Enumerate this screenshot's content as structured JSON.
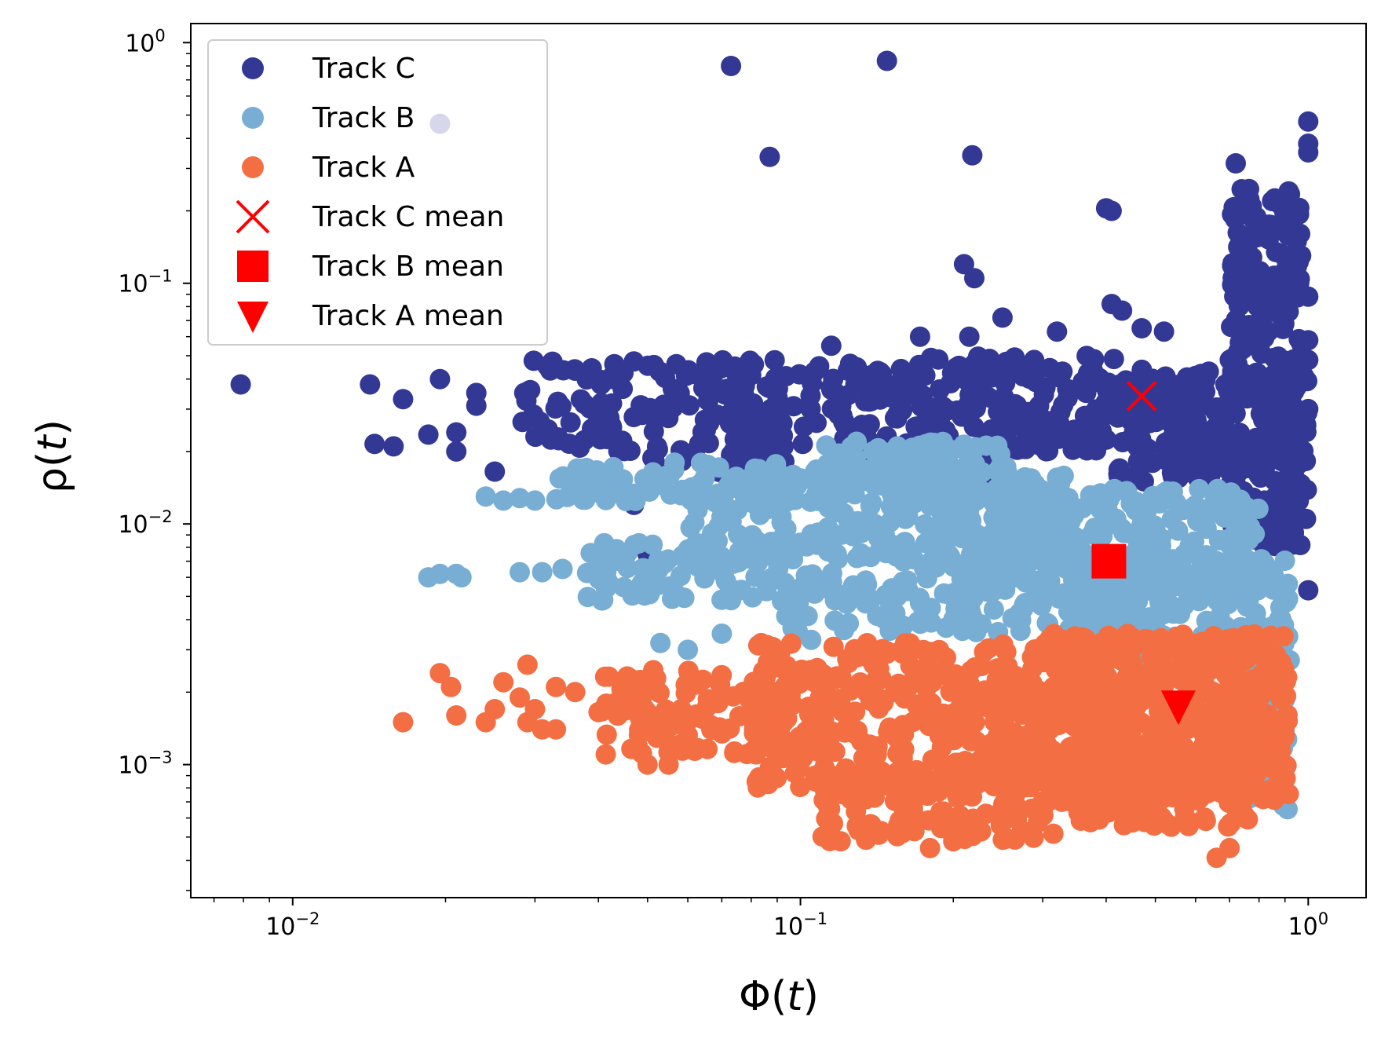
{
  "chart_data": {
    "type": "scatter",
    "xlabel_main": "Φ(",
    "xlabel_var": "t",
    "xlabel_close": ")",
    "ylabel_main": "ρ(",
    "ylabel_var": "t",
    "ylabel_close": ")",
    "xscale": "log",
    "yscale": "log",
    "xlim": [
      0.0063,
      1.3
    ],
    "ylim": [
      0.00028,
      1.2
    ],
    "grid": false,
    "legend_position": "upper-left",
    "x_ticks": [
      {
        "value": 0.01,
        "base": "10",
        "exp": "−2"
      },
      {
        "value": 0.1,
        "base": "10",
        "exp": "−1"
      },
      {
        "value": 1,
        "base": "10",
        "exp": "0"
      }
    ],
    "y_ticks": [
      {
        "value": 0.001,
        "base": "10",
        "exp": "−3"
      },
      {
        "value": 0.01,
        "base": "10",
        "exp": "−2"
      },
      {
        "value": 0.1,
        "base": "10",
        "exp": "−1"
      },
      {
        "value": 1,
        "base": "10",
        "exp": "0"
      }
    ],
    "series": [
      {
        "name": "Track C",
        "color": "#333895",
        "marker": "circle",
        "points": [
          [
            0.0079,
            0.038
          ],
          [
            0.0142,
            0.038
          ],
          [
            0.0145,
            0.0215
          ],
          [
            0.0158,
            0.021
          ],
          [
            0.0165,
            0.033
          ],
          [
            0.0195,
            0.04
          ],
          [
            0.0185,
            0.0235
          ],
          [
            0.021,
            0.024
          ],
          [
            0.023,
            0.035
          ],
          [
            0.023,
            0.031
          ],
          [
            0.025,
            0.0165
          ],
          [
            0.021,
            0.02
          ],
          [
            0.0195,
            0.46
          ],
          [
            0.073,
            0.8
          ],
          [
            0.148,
            0.84
          ],
          [
            0.087,
            0.335
          ],
          [
            0.218,
            0.34
          ],
          [
            0.21,
            0.12
          ],
          [
            0.22,
            0.105
          ],
          [
            0.25,
            0.072
          ],
          [
            0.115,
            0.055
          ],
          [
            0.172,
            0.06
          ],
          [
            0.215,
            0.06
          ],
          [
            0.32,
            0.063
          ],
          [
            0.4,
            0.205
          ],
          [
            0.41,
            0.2
          ],
          [
            0.41,
            0.082
          ],
          [
            0.43,
            0.077
          ],
          [
            0.47,
            0.065
          ],
          [
            0.52,
            0.063
          ],
          [
            0.72,
            0.315
          ],
          [
            1.0,
            0.47
          ],
          [
            1.0,
            0.38
          ],
          [
            1.0,
            0.35
          ],
          [
            1.0,
            0.088
          ],
          [
            1.0,
            0.058
          ],
          [
            1.0,
            0.048
          ],
          [
            1.0,
            0.03
          ],
          [
            0.99,
            0.0105
          ],
          [
            1.0,
            0.0053
          ],
          [
            0.05,
            0.0075
          ],
          [
            0.047,
            0.012
          ]
        ],
        "clusters": [
          {
            "x_range": [
              0.028,
              0.12
            ],
            "y_range": [
              0.02,
              0.048
            ],
            "count": 170
          },
          {
            "x_range": [
              0.12,
              0.42
            ],
            "y_range": [
              0.02,
              0.05
            ],
            "count": 210
          },
          {
            "x_range": [
              0.42,
              0.72
            ],
            "y_range": [
              0.015,
              0.045
            ],
            "count": 140
          },
          {
            "x_range": [
              0.7,
              0.97
            ],
            "y_range": [
              0.008,
              0.25
            ],
            "count": 300
          },
          {
            "x_range": [
              0.85,
              1.0
            ],
            "y_range": [
              0.012,
              0.05
            ],
            "count": 60
          },
          {
            "x_range": [
              0.05,
              0.32
            ],
            "y_range": [
              0.015,
              0.022
            ],
            "count": 60
          }
        ]
      },
      {
        "name": "Track B",
        "color": "#78aed3",
        "marker": "circle",
        "points": [
          [
            0.0185,
            0.006
          ],
          [
            0.0195,
            0.0062
          ],
          [
            0.021,
            0.0062
          ],
          [
            0.0215,
            0.006
          ],
          [
            0.024,
            0.013
          ],
          [
            0.026,
            0.0125
          ],
          [
            0.028,
            0.0128
          ],
          [
            0.03,
            0.0125
          ],
          [
            0.028,
            0.0063
          ],
          [
            0.031,
            0.0063
          ],
          [
            0.034,
            0.0065
          ],
          [
            0.053,
            0.0032
          ],
          [
            0.06,
            0.003
          ],
          [
            0.07,
            0.0035
          ],
          [
            0.088,
            0.003
          ],
          [
            0.105,
            0.0033
          ],
          [
            0.15,
            0.0036
          ],
          [
            0.18,
            0.0029
          ],
          [
            0.88,
            0.0055
          ]
        ],
        "clusters": [
          {
            "x_range": [
              0.033,
              0.11
            ],
            "y_range": [
              0.012,
              0.018
            ],
            "count": 90
          },
          {
            "x_range": [
              0.038,
              0.12
            ],
            "y_range": [
              0.0048,
              0.0085
            ],
            "count": 110
          },
          {
            "x_range": [
              0.06,
              0.35
            ],
            "y_range": [
              0.0065,
              0.016
            ],
            "count": 260
          },
          {
            "x_range": [
              0.11,
              0.26
            ],
            "y_range": [
              0.014,
              0.022
            ],
            "count": 110
          },
          {
            "x_range": [
              0.2,
              0.8
            ],
            "y_range": [
              0.005,
              0.014
            ],
            "count": 250
          },
          {
            "x_range": [
              0.09,
              0.45
            ],
            "y_range": [
              0.0035,
              0.006
            ],
            "count": 110
          },
          {
            "x_range": [
              0.35,
              0.92
            ],
            "y_range": [
              0.0028,
              0.0075
            ],
            "count": 200
          },
          {
            "x_range": [
              0.75,
              0.92
            ],
            "y_range": [
              0.0006,
              0.003
            ],
            "count": 40
          }
        ]
      },
      {
        "name": "Track A",
        "color": "#f36f43",
        "marker": "circle",
        "points": [
          [
            0.0165,
            0.0015
          ],
          [
            0.0195,
            0.0024
          ],
          [
            0.0205,
            0.0021
          ],
          [
            0.021,
            0.0016
          ],
          [
            0.024,
            0.0015
          ],
          [
            0.025,
            0.0017
          ],
          [
            0.026,
            0.0022
          ],
          [
            0.028,
            0.0019
          ],
          [
            0.029,
            0.0026
          ],
          [
            0.029,
            0.0015
          ],
          [
            0.03,
            0.0017
          ],
          [
            0.031,
            0.0014
          ],
          [
            0.033,
            0.0021
          ],
          [
            0.033,
            0.0014
          ],
          [
            0.036,
            0.002
          ],
          [
            0.05,
            0.001
          ],
          [
            0.055,
            0.001
          ],
          [
            0.12,
            0.00048
          ],
          [
            0.18,
            0.00045
          ],
          [
            0.2,
            0.00048
          ],
          [
            0.66,
            0.00041
          ],
          [
            0.7,
            0.00045
          ],
          [
            0.16,
            0.00065
          ]
        ],
        "clusters": [
          {
            "x_range": [
              0.04,
              0.11
            ],
            "y_range": [
              0.0011,
              0.0025
            ],
            "count": 110
          },
          {
            "x_range": [
              0.08,
              0.3
            ],
            "y_range": [
              0.0008,
              0.0032
            ],
            "count": 330
          },
          {
            "x_range": [
              0.11,
              0.32
            ],
            "y_range": [
              0.00048,
              0.0009
            ],
            "count": 120
          },
          {
            "x_range": [
              0.3,
              0.92
            ],
            "y_range": [
              0.0007,
              0.0035
            ],
            "count": 600
          },
          {
            "x_range": [
              0.35,
              0.8
            ],
            "y_range": [
              0.00055,
              0.0009
            ],
            "count": 90
          }
        ]
      },
      {
        "name": "Track C mean",
        "color": "#ff0000",
        "marker": "x",
        "points": [
          [
            0.47,
            0.034
          ]
        ]
      },
      {
        "name": "Track B mean",
        "color": "#ff0000",
        "marker": "square",
        "points": [
          [
            0.405,
            0.007
          ]
        ]
      },
      {
        "name": "Track A mean",
        "color": "#ff0000",
        "marker": "triangle-down",
        "points": [
          [
            0.555,
            0.00175
          ]
        ]
      }
    ]
  }
}
